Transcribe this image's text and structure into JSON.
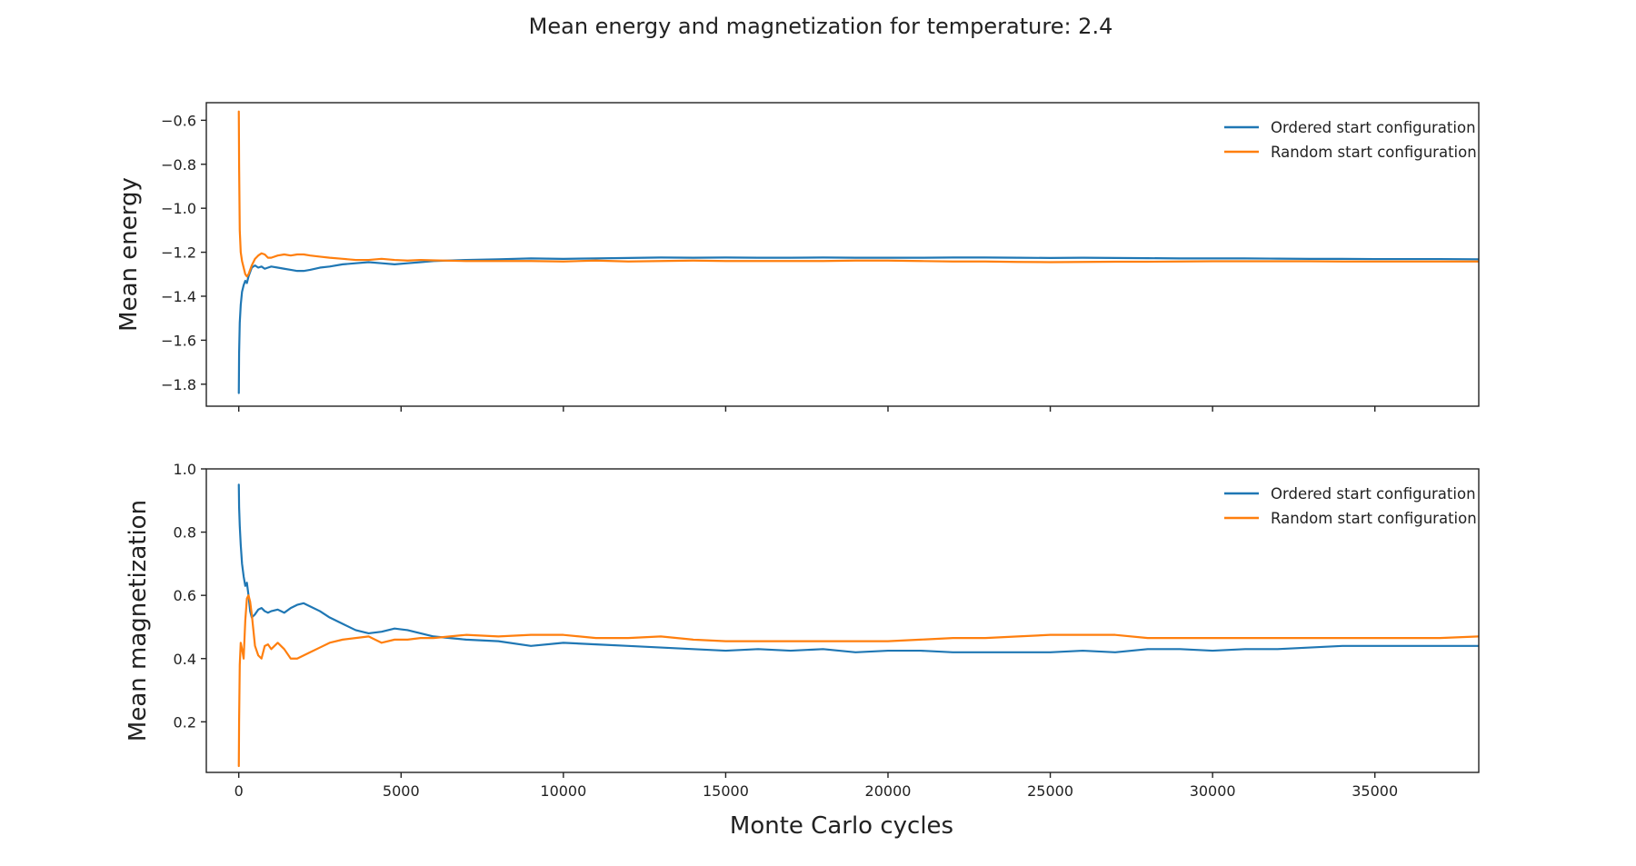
{
  "figure": {
    "title": "Mean energy and magnetization for temperature: 2.4",
    "xlabel": "Monte Carlo cycles"
  },
  "colors": {
    "ordered": "#1f77b4",
    "random": "#ff7f0e",
    "axes": "#222222"
  },
  "chart_data": [
    {
      "type": "line",
      "ylabel": "Mean energy",
      "xlim": [
        -1000,
        38200
      ],
      "ylim": [
        -1.9,
        -0.52
      ],
      "yticks": [
        -1.8,
        -1.6,
        -1.4,
        -1.2,
        -1.0,
        -0.8,
        -0.6
      ],
      "xticks": [
        0,
        5000,
        10000,
        15000,
        20000,
        25000,
        30000,
        35000
      ],
      "show_x_tick_labels": false,
      "legend": "top-right",
      "grid": false,
      "series": [
        {
          "name": "Ordered start configuration",
          "color": "#1f77b4",
          "x": [
            1,
            10,
            30,
            60,
            100,
            150,
            200,
            250,
            300,
            350,
            400,
            500,
            600,
            700,
            800,
            900,
            1000,
            1200,
            1400,
            1600,
            1800,
            2000,
            2200,
            2500,
            2800,
            3200,
            3600,
            4000,
            4400,
            4800,
            5200,
            5600,
            6000,
            7000,
            8000,
            9000,
            10000,
            11000,
            12000,
            13000,
            14000,
            15000,
            16000,
            17000,
            18000,
            19000,
            20000,
            21000,
            22000,
            23000,
            24000,
            25000,
            26000,
            27000,
            28000,
            29000,
            30000,
            31000,
            32000,
            33000,
            34000,
            35000,
            36000,
            37000,
            38200
          ],
          "y": [
            -1.84,
            -1.66,
            -1.52,
            -1.44,
            -1.38,
            -1.35,
            -1.33,
            -1.34,
            -1.31,
            -1.29,
            -1.27,
            -1.26,
            -1.27,
            -1.265,
            -1.275,
            -1.27,
            -1.265,
            -1.27,
            -1.275,
            -1.28,
            -1.285,
            -1.285,
            -1.28,
            -1.27,
            -1.265,
            -1.255,
            -1.25,
            -1.245,
            -1.25,
            -1.255,
            -1.25,
            -1.245,
            -1.24,
            -1.235,
            -1.232,
            -1.228,
            -1.23,
            -1.228,
            -1.226,
            -1.224,
            -1.225,
            -1.224,
            -1.225,
            -1.225,
            -1.224,
            -1.225,
            -1.225,
            -1.225,
            -1.224,
            -1.224,
            -1.225,
            -1.226,
            -1.225,
            -1.226,
            -1.227,
            -1.228,
            -1.228,
            -1.228,
            -1.229,
            -1.23,
            -1.23,
            -1.231,
            -1.231,
            -1.231,
            -1.232
          ]
        },
        {
          "name": "Random start configuration",
          "color": "#ff7f0e",
          "x": [
            1,
            10,
            30,
            60,
            100,
            150,
            200,
            250,
            300,
            350,
            400,
            500,
            600,
            700,
            800,
            900,
            1000,
            1200,
            1400,
            1600,
            1800,
            2000,
            2200,
            2500,
            2800,
            3200,
            3600,
            4000,
            4400,
            4800,
            5200,
            5600,
            6000,
            7000,
            8000,
            9000,
            10000,
            11000,
            12000,
            13000,
            14000,
            15000,
            16000,
            17000,
            18000,
            19000,
            20000,
            21000,
            22000,
            23000,
            24000,
            25000,
            26000,
            27000,
            28000,
            29000,
            30000,
            31000,
            32000,
            33000,
            34000,
            35000,
            36000,
            37000,
            38200
          ],
          "y": [
            -0.56,
            -0.8,
            -1.1,
            -1.2,
            -1.24,
            -1.27,
            -1.3,
            -1.31,
            -1.3,
            -1.28,
            -1.26,
            -1.23,
            -1.215,
            -1.205,
            -1.21,
            -1.225,
            -1.225,
            -1.215,
            -1.21,
            -1.215,
            -1.21,
            -1.21,
            -1.215,
            -1.22,
            -1.225,
            -1.23,
            -1.235,
            -1.235,
            -1.23,
            -1.235,
            -1.238,
            -1.235,
            -1.237,
            -1.24,
            -1.24,
            -1.24,
            -1.242,
            -1.238,
            -1.242,
            -1.24,
            -1.238,
            -1.24,
            -1.24,
            -1.24,
            -1.24,
            -1.238,
            -1.238,
            -1.24,
            -1.242,
            -1.242,
            -1.244,
            -1.245,
            -1.244,
            -1.243,
            -1.243,
            -1.242,
            -1.241,
            -1.241,
            -1.241,
            -1.241,
            -1.242,
            -1.242,
            -1.242,
            -1.242,
            -1.242
          ]
        }
      ]
    },
    {
      "type": "line",
      "ylabel": "Mean magnetization",
      "xlim": [
        -1000,
        38200
      ],
      "ylim": [
        0.04,
        1.0
      ],
      "yticks": [
        0.2,
        0.4,
        0.6,
        0.8,
        1.0
      ],
      "xticks": [
        0,
        5000,
        10000,
        15000,
        20000,
        25000,
        30000,
        35000
      ],
      "show_x_tick_labels": true,
      "legend": "top-right",
      "grid": false,
      "series": [
        {
          "name": "Ordered start configuration",
          "color": "#1f77b4",
          "x": [
            1,
            10,
            30,
            60,
            100,
            150,
            200,
            250,
            300,
            350,
            400,
            500,
            600,
            700,
            800,
            900,
            1000,
            1200,
            1400,
            1600,
            1800,
            2000,
            2200,
            2500,
            2800,
            3200,
            3600,
            4000,
            4400,
            4800,
            5200,
            5600,
            6000,
            6500,
            7000,
            8000,
            9000,
            10000,
            11000,
            12000,
            13000,
            14000,
            15000,
            16000,
            17000,
            18000,
            19000,
            20000,
            21000,
            22000,
            23000,
            24000,
            25000,
            26000,
            27000,
            28000,
            29000,
            30000,
            31000,
            32000,
            33000,
            34000,
            35000,
            36000,
            37000,
            38200
          ],
          "y": [
            0.95,
            0.88,
            0.82,
            0.76,
            0.7,
            0.66,
            0.63,
            0.64,
            0.6,
            0.55,
            0.53,
            0.54,
            0.555,
            0.56,
            0.55,
            0.545,
            0.55,
            0.555,
            0.545,
            0.56,
            0.57,
            0.575,
            0.565,
            0.55,
            0.53,
            0.51,
            0.49,
            0.48,
            0.485,
            0.495,
            0.49,
            0.48,
            0.47,
            0.465,
            0.46,
            0.455,
            0.44,
            0.45,
            0.445,
            0.44,
            0.435,
            0.43,
            0.425,
            0.43,
            0.425,
            0.43,
            0.42,
            0.425,
            0.425,
            0.42,
            0.42,
            0.42,
            0.42,
            0.425,
            0.42,
            0.43,
            0.43,
            0.425,
            0.43,
            0.43,
            0.435,
            0.44,
            0.44,
            0.44,
            0.44,
            0.44
          ]
        },
        {
          "name": "Random start configuration",
          "color": "#ff7f0e",
          "x": [
            1,
            10,
            30,
            60,
            100,
            150,
            200,
            250,
            300,
            350,
            400,
            500,
            600,
            700,
            800,
            900,
            1000,
            1200,
            1400,
            1600,
            1800,
            2000,
            2200,
            2500,
            2800,
            3200,
            3600,
            4000,
            4400,
            4800,
            5200,
            5600,
            6000,
            6500,
            7000,
            8000,
            9000,
            10000,
            11000,
            12000,
            13000,
            14000,
            15000,
            16000,
            17000,
            18000,
            19000,
            20000,
            21000,
            22000,
            23000,
            24000,
            25000,
            26000,
            27000,
            28000,
            29000,
            30000,
            31000,
            32000,
            33000,
            34000,
            35000,
            36000,
            37000,
            38200
          ],
          "y": [
            0.06,
            0.2,
            0.38,
            0.45,
            0.43,
            0.4,
            0.52,
            0.59,
            0.6,
            0.58,
            0.54,
            0.44,
            0.41,
            0.4,
            0.44,
            0.445,
            0.43,
            0.45,
            0.43,
            0.4,
            0.4,
            0.41,
            0.42,
            0.435,
            0.45,
            0.46,
            0.465,
            0.47,
            0.45,
            0.46,
            0.46,
            0.465,
            0.465,
            0.47,
            0.475,
            0.47,
            0.475,
            0.475,
            0.465,
            0.465,
            0.47,
            0.46,
            0.455,
            0.455,
            0.455,
            0.455,
            0.455,
            0.455,
            0.46,
            0.465,
            0.465,
            0.47,
            0.475,
            0.475,
            0.475,
            0.465,
            0.465,
            0.465,
            0.465,
            0.465,
            0.465,
            0.465,
            0.465,
            0.465,
            0.465,
            0.47
          ]
        }
      ]
    }
  ]
}
